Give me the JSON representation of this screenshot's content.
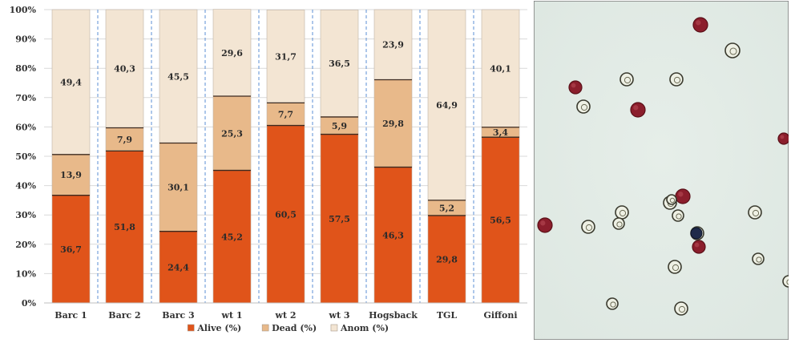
{
  "chart_data": {
    "type": "bar",
    "stacked": true,
    "categories": [
      "Barc 1",
      "Barc 2",
      "Barc 3",
      "wt 1",
      "wt 2",
      "wt 3",
      "Hogsback",
      "TGL",
      "Giffoni"
    ],
    "series": [
      {
        "name": "Alive (%)",
        "color": "#E0541A",
        "values": [
          36.7,
          51.8,
          24.4,
          45.2,
          60.5,
          57.5,
          46.3,
          29.8,
          56.5
        ],
        "labels": [
          "36,7",
          "51,8",
          "24,4",
          "45,2",
          "60,5",
          "57,5",
          "46,3",
          "29,8",
          "56,5"
        ]
      },
      {
        "name": "Dead (%)",
        "color": "#E8B98A",
        "values": [
          13.9,
          7.9,
          30.1,
          25.3,
          7.7,
          5.9,
          29.8,
          5.2,
          3.4
        ],
        "labels": [
          "13,9",
          "7,9",
          "30,1",
          "25,3",
          "7,7",
          "5,9",
          "29,8",
          "5,2",
          "3,4"
        ]
      },
      {
        "name": "Anom (%)",
        "color": "#F3E5D3",
        "values": [
          49.4,
          40.3,
          45.5,
          29.6,
          31.7,
          36.5,
          23.9,
          64.9,
          40.1
        ],
        "labels": [
          "49,4",
          "40,3",
          "45,5",
          "29,6",
          "31,7",
          "36,5",
          "23,9",
          "64,9",
          "40,1"
        ]
      }
    ],
    "ylim": [
      0,
      100
    ],
    "yticks": [
      "0%",
      "10%",
      "20%",
      "30%",
      "40%",
      "50%",
      "60%",
      "70%",
      "80%",
      "90%",
      "100%"
    ],
    "grid": true,
    "legend_position": "bottom",
    "title": "",
    "xlabel": "",
    "ylabel": ""
  },
  "micrograph": {
    "background": "#DDE7E1",
    "stained_color": "#8B1E2C",
    "unstained_color": "#3a3a2e"
  }
}
